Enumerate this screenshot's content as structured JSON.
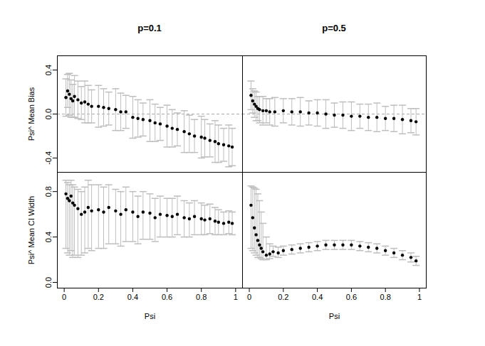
{
  "chart_data": [
    {
      "type": "scatter",
      "title": "p=0.1",
      "ylabel": "Psi^ Mean Bias",
      "color": "#000000",
      "marker": "circle",
      "tick_labels": "y",
      "reference_y": 0,
      "xlim": [
        -0.04,
        1.04
      ],
      "ylim": [
        -0.53,
        0.53
      ],
      "yticks": [
        -0.4,
        {
          "value": 0,
          "label": "0.0"
        },
        0.4
      ],
      "x": [
        0.01,
        0.02,
        0.03,
        0.04,
        0.05,
        0.06,
        0.08,
        0.1,
        0.12,
        0.14,
        0.16,
        0.2,
        0.23,
        0.26,
        0.3,
        0.33,
        0.36,
        0.4,
        0.43,
        0.46,
        0.5,
        0.53,
        0.56,
        0.6,
        0.63,
        0.66,
        0.7,
        0.73,
        0.76,
        0.8,
        0.82,
        0.85,
        0.88,
        0.9,
        0.93,
        0.96,
        0.98
      ],
      "values": [
        0.15,
        0.21,
        0.18,
        0.14,
        0.12,
        0.16,
        0.13,
        0.1,
        0.11,
        0.09,
        0.07,
        0.07,
        0.06,
        0.05,
        0.04,
        0.02,
        0.02,
        -0.03,
        -0.04,
        -0.05,
        -0.06,
        -0.08,
        -0.09,
        -0.11,
        -0.13,
        -0.14,
        -0.16,
        -0.18,
        -0.2,
        -0.21,
        -0.22,
        -0.24,
        -0.25,
        -0.27,
        -0.28,
        -0.29,
        -0.3
      ],
      "lower": [
        -0.02,
        0.06,
        -0.01,
        -0.03,
        -0.03,
        -0.03,
        -0.04,
        -0.05,
        -0.08,
        -0.08,
        -0.08,
        -0.12,
        -0.11,
        -0.1,
        -0.15,
        -0.15,
        -0.13,
        -0.22,
        -0.21,
        -0.2,
        -0.25,
        -0.25,
        -0.24,
        -0.3,
        -0.3,
        -0.29,
        -0.35,
        -0.35,
        -0.35,
        -0.4,
        -0.39,
        -0.39,
        -0.44,
        -0.44,
        -0.43,
        -0.48,
        -0.47
      ],
      "upper": [
        0.32,
        0.36,
        0.37,
        0.31,
        0.27,
        0.35,
        0.3,
        0.25,
        0.3,
        0.26,
        0.22,
        0.26,
        0.23,
        0.2,
        0.23,
        0.19,
        0.17,
        0.16,
        0.13,
        0.1,
        0.13,
        0.09,
        0.06,
        0.08,
        0.04,
        0.01,
        0.03,
        -0.01,
        -0.05,
        -0.02,
        -0.05,
        -0.09,
        -0.06,
        -0.1,
        -0.13,
        -0.1,
        -0.13
      ]
    },
    {
      "type": "scatter",
      "title": "p=0.5",
      "color": "#000000",
      "marker": "circle",
      "tick_labels": false,
      "reference_y": 0,
      "xlim": [
        -0.04,
        1.04
      ],
      "ylim": [
        -0.53,
        0.53
      ],
      "x": [
        0.01,
        0.02,
        0.03,
        0.04,
        0.05,
        0.06,
        0.08,
        0.1,
        0.12,
        0.15,
        0.2,
        0.25,
        0.3,
        0.35,
        0.4,
        0.45,
        0.5,
        0.55,
        0.6,
        0.65,
        0.7,
        0.75,
        0.8,
        0.85,
        0.9,
        0.95,
        0.98
      ],
      "values": [
        0.17,
        0.12,
        0.09,
        0.07,
        0.05,
        0.04,
        0.03,
        0.03,
        0.02,
        0.02,
        0.03,
        0.02,
        0.02,
        0.01,
        0.01,
        0.0,
        -0.01,
        -0.01,
        -0.02,
        -0.02,
        -0.03,
        -0.03,
        -0.04,
        -0.04,
        -0.05,
        -0.06,
        -0.07
      ],
      "lower": [
        0.04,
        0.01,
        -0.03,
        -0.06,
        -0.06,
        -0.08,
        -0.1,
        -0.08,
        -0.1,
        -0.11,
        -0.08,
        -0.1,
        -0.11,
        -0.1,
        -0.11,
        -0.13,
        -0.12,
        -0.13,
        -0.15,
        -0.13,
        -0.15,
        -0.16,
        -0.15,
        -0.16,
        -0.18,
        -0.17,
        -0.19
      ],
      "upper": [
        0.3,
        0.23,
        0.21,
        0.2,
        0.16,
        0.16,
        0.16,
        0.14,
        0.14,
        0.15,
        0.14,
        0.14,
        0.15,
        0.12,
        0.13,
        0.13,
        0.1,
        0.11,
        0.11,
        0.09,
        0.09,
        0.1,
        0.07,
        0.08,
        0.08,
        0.05,
        0.05
      ]
    },
    {
      "type": "scatter",
      "xlabel": "Psi",
      "ylabel": "Psi^ Mean CI Width",
      "color": "#000000",
      "marker": "circle",
      "xlim": [
        -0.04,
        1.04
      ],
      "ylim": [
        -0.05,
        0.97
      ],
      "xticks": [
        0,
        0.2,
        0.4,
        0.6,
        0.8,
        1
      ],
      "yticks": [
        {
          "value": 0,
          "label": "0.0"
        },
        0.4,
        0.8
      ],
      "x": [
        0.01,
        0.02,
        0.03,
        0.04,
        0.05,
        0.06,
        0.08,
        0.1,
        0.12,
        0.14,
        0.16,
        0.2,
        0.23,
        0.26,
        0.3,
        0.33,
        0.36,
        0.4,
        0.43,
        0.46,
        0.5,
        0.53,
        0.56,
        0.6,
        0.63,
        0.66,
        0.7,
        0.73,
        0.76,
        0.8,
        0.82,
        0.85,
        0.88,
        0.9,
        0.93,
        0.96,
        0.98
      ],
      "values": [
        0.78,
        0.74,
        0.72,
        0.76,
        0.7,
        0.68,
        0.65,
        0.6,
        0.62,
        0.66,
        0.63,
        0.64,
        0.62,
        0.66,
        0.63,
        0.6,
        0.64,
        0.62,
        0.58,
        0.62,
        0.61,
        0.57,
        0.6,
        0.59,
        0.58,
        0.6,
        0.57,
        0.56,
        0.58,
        0.56,
        0.55,
        0.56,
        0.54,
        0.53,
        0.52,
        0.53,
        0.52
      ],
      "lower": [
        0.3,
        0.26,
        0.24,
        0.28,
        0.22,
        0.24,
        0.22,
        0.24,
        0.26,
        0.3,
        0.28,
        0.3,
        0.3,
        0.34,
        0.34,
        0.32,
        0.36,
        0.36,
        0.34,
        0.38,
        0.38,
        0.36,
        0.4,
        0.4,
        0.4,
        0.42,
        0.4,
        0.4,
        0.42,
        0.42,
        0.42,
        0.43,
        0.42,
        0.42,
        0.42,
        0.43,
        0.42
      ],
      "upper": [
        0.9,
        0.88,
        0.86,
        0.9,
        0.86,
        0.84,
        0.82,
        0.8,
        0.84,
        0.9,
        0.86,
        0.86,
        0.84,
        0.86,
        0.82,
        0.8,
        0.84,
        0.8,
        0.76,
        0.8,
        0.78,
        0.74,
        0.76,
        0.74,
        0.74,
        0.76,
        0.72,
        0.7,
        0.72,
        0.7,
        0.68,
        0.69,
        0.66,
        0.64,
        0.62,
        0.63,
        0.62
      ]
    },
    {
      "type": "scatter",
      "xlabel": "Psi",
      "color": "#000000",
      "marker": "circle",
      "tick_labels": "x",
      "xlim": [
        -0.04,
        1.04
      ],
      "ylim": [
        -0.05,
        0.97
      ],
      "xticks": [
        0,
        0.2,
        0.4,
        0.6,
        0.8,
        1
      ],
      "x": [
        0.01,
        0.02,
        0.03,
        0.04,
        0.05,
        0.06,
        0.07,
        0.08,
        0.1,
        0.12,
        0.14,
        0.17,
        0.2,
        0.25,
        0.3,
        0.35,
        0.4,
        0.45,
        0.5,
        0.55,
        0.6,
        0.65,
        0.7,
        0.75,
        0.8,
        0.85,
        0.9,
        0.95,
        0.98
      ],
      "values": [
        0.68,
        0.57,
        0.48,
        0.42,
        0.37,
        0.33,
        0.3,
        0.27,
        0.24,
        0.25,
        0.27,
        0.26,
        0.28,
        0.29,
        0.3,
        0.31,
        0.32,
        0.33,
        0.33,
        0.33,
        0.33,
        0.32,
        0.31,
        0.3,
        0.28,
        0.26,
        0.24,
        0.22,
        0.19
      ],
      "lower": [
        0.3,
        0.28,
        0.26,
        0.24,
        0.22,
        0.22,
        0.21,
        0.2,
        0.2,
        0.21,
        0.23,
        0.22,
        0.24,
        0.25,
        0.26,
        0.27,
        0.28,
        0.29,
        0.29,
        0.29,
        0.29,
        0.28,
        0.27,
        0.26,
        0.24,
        0.22,
        0.2,
        0.18,
        0.15
      ],
      "upper": [
        0.85,
        0.84,
        0.83,
        0.82,
        0.78,
        0.72,
        0.62,
        0.52,
        0.4,
        0.34,
        0.32,
        0.31,
        0.32,
        0.33,
        0.34,
        0.35,
        0.36,
        0.37,
        0.37,
        0.37,
        0.37,
        0.36,
        0.35,
        0.34,
        0.32,
        0.3,
        0.28,
        0.26,
        0.23
      ]
    }
  ]
}
